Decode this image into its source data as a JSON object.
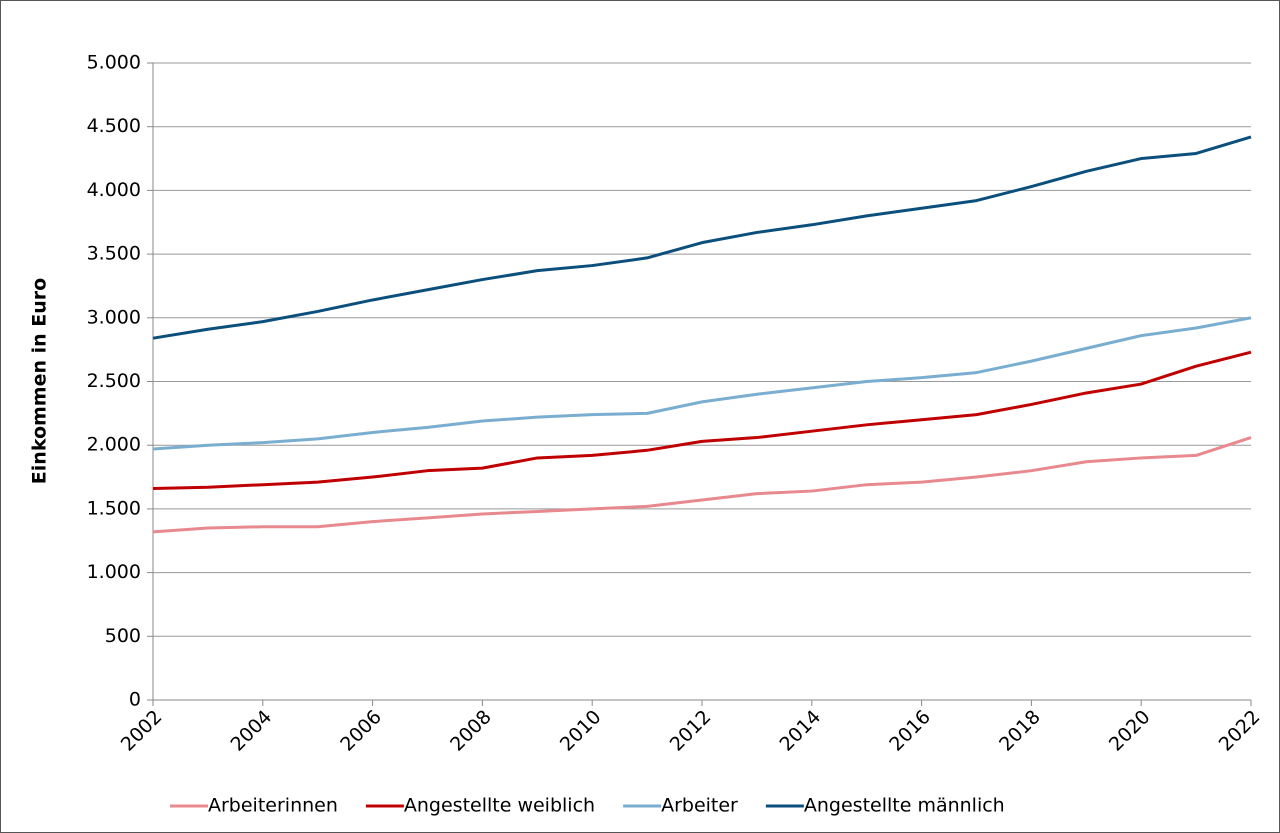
{
  "chart_data": {
    "type": "line",
    "y_label": "Einkommen in Euro",
    "x": [
      2002,
      2003,
      2004,
      2005,
      2006,
      2007,
      2008,
      2009,
      2010,
      2011,
      2012,
      2013,
      2014,
      2015,
      2016,
      2017,
      2018,
      2019,
      2020,
      2021,
      2022
    ],
    "series": [
      {
        "name": "Arbeiterinnen",
        "color": "#e8898f",
        "values": [
          1320,
          1350,
          1360,
          1360,
          1400,
          1430,
          1460,
          1480,
          1500,
          1520,
          1570,
          1620,
          1640,
          1690,
          1710,
          1750,
          1800,
          1870,
          1900,
          1920,
          2060
        ]
      },
      {
        "name": "Angestellte weiblich",
        "color": "#c00000",
        "values": [
          1660,
          1670,
          1690,
          1710,
          1750,
          1800,
          1820,
          1900,
          1920,
          1960,
          2030,
          2060,
          2110,
          2160,
          2200,
          2240,
          2320,
          2410,
          2480,
          2620,
          2730
        ]
      },
      {
        "name": "Arbeiter",
        "color": "#7aaed0",
        "values": [
          1970,
          2000,
          2020,
          2050,
          2100,
          2140,
          2190,
          2220,
          2240,
          2250,
          2340,
          2400,
          2450,
          2500,
          2530,
          2570,
          2660,
          2760,
          2860,
          2920,
          3000
        ]
      },
      {
        "name": "Angestellte männlich",
        "color": "#0b4f7d",
        "values": [
          2840,
          2910,
          2970,
          3050,
          3140,
          3220,
          3300,
          3370,
          3410,
          3470,
          3590,
          3670,
          3730,
          3800,
          3860,
          3920,
          4030,
          4150,
          4250,
          4290,
          4420
        ]
      }
    ],
    "xlim": [
      2002,
      2022
    ],
    "xticks": [
      2002,
      2004,
      2006,
      2008,
      2010,
      2012,
      2014,
      2016,
      2018,
      2020,
      2022
    ],
    "ylim": [
      0,
      5000
    ],
    "yticks": [
      0,
      500,
      {
        "value": 1000,
        "label": "1.000"
      },
      {
        "value": 1500,
        "label": "1.500"
      },
      {
        "value": 2000,
        "label": "2.000"
      },
      {
        "value": 2500,
        "label": "2.500"
      },
      {
        "value": 3000,
        "label": "3.000"
      },
      {
        "value": 3500,
        "label": "3.500"
      },
      {
        "value": 4000,
        "label": "4.000"
      },
      {
        "value": 4500,
        "label": "4.500"
      },
      {
        "value": 5000,
        "label": "5.000"
      }
    ],
    "grid": true,
    "legend": "bottom"
  }
}
